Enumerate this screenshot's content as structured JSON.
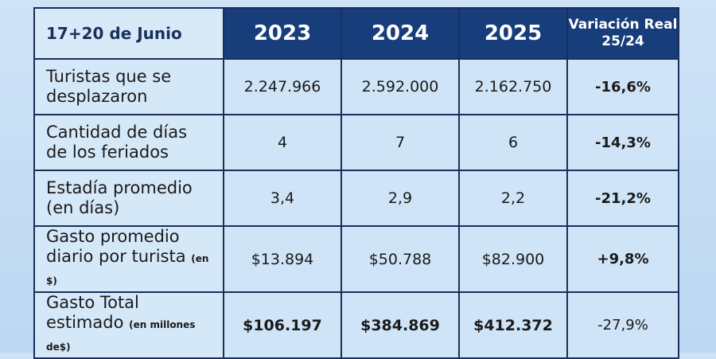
{
  "header": {
    "corner": "17+20 de Junio",
    "years": [
      "2023",
      "2024",
      "2025"
    ],
    "variation_line1": "Variación Real",
    "variation_line2": "25/24"
  },
  "rows": [
    {
      "label_line1": "Turistas que se",
      "label_line2": "desplazaron",
      "label_note": "",
      "values": [
        "2.247.966",
        "2.592.000",
        "2.162.750"
      ],
      "variation": "-16,6%"
    },
    {
      "label_line1": "Cantidad de días",
      "label_line2": "de los feriados",
      "label_note": "",
      "values": [
        "4",
        "7",
        "6"
      ],
      "variation": "-14,3%"
    },
    {
      "label_line1": "Estadía promedio",
      "label_line2": "(en días)",
      "label_note": "",
      "values": [
        "3,4",
        "2,9",
        "2,2"
      ],
      "variation": "-21,2%"
    },
    {
      "label_line1": "Gasto promedio",
      "label_line2": "diario por turista",
      "label_note": "(en $)",
      "values": [
        "$13.894",
        "$50.788",
        "$82.900"
      ],
      "variation": "+9,8%"
    },
    {
      "label_line1": "Gasto Total",
      "label_line2": "estimado",
      "label_note": "(en millones de$)",
      "values": [
        "$106.197",
        "$384.869",
        "$412.372"
      ],
      "variation": "-27,9%"
    }
  ]
}
